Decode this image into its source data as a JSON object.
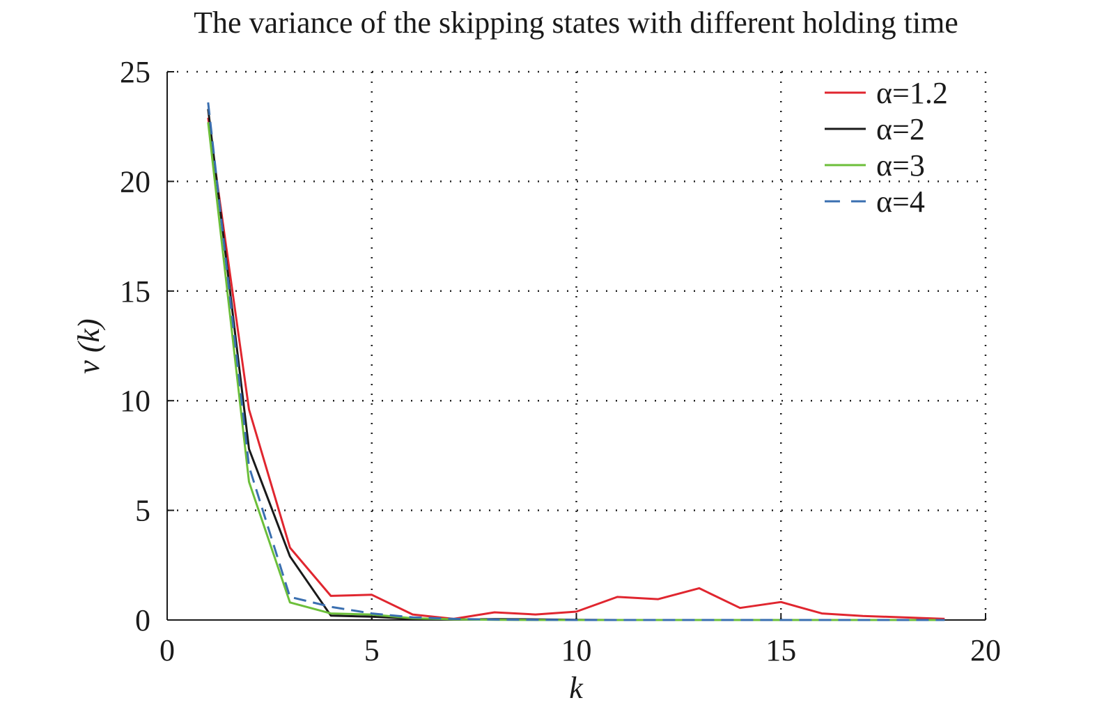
{
  "chart_data": {
    "type": "line",
    "title": "The variance of the skipping states with different holding time",
    "xlabel": "k",
    "ylabel": "v (k)",
    "xlim": [
      0,
      20
    ],
    "ylim": [
      0,
      25
    ],
    "xticks": [
      0,
      5,
      10,
      15,
      20
    ],
    "yticks": [
      0,
      5,
      10,
      15,
      20,
      25
    ],
    "grid": true,
    "legend_position": "top-right",
    "series": [
      {
        "name": "α=1.2",
        "color": "#e0262f",
        "dash": "solid",
        "x": [
          1,
          2,
          3,
          4,
          5,
          6,
          7,
          8,
          9,
          10,
          11,
          12,
          13,
          14,
          15,
          16,
          17,
          18,
          19
        ],
        "y": [
          22.9,
          9.6,
          3.3,
          1.1,
          1.15,
          0.25,
          0.05,
          0.35,
          0.25,
          0.38,
          1.05,
          0.95,
          1.45,
          0.55,
          0.82,
          0.3,
          0.18,
          0.12,
          0.05
        ]
      },
      {
        "name": "α=2",
        "color": "#1a1a1a",
        "dash": "solid",
        "x": [
          1,
          2,
          3,
          4,
          5,
          6,
          7,
          8,
          9,
          10,
          11,
          12,
          13,
          14,
          15,
          16,
          17,
          18,
          19
        ],
        "y": [
          23.3,
          7.8,
          2.9,
          0.2,
          0.15,
          0.05,
          0.02,
          0.04,
          0.03,
          0.01,
          0.0,
          0.0,
          0.0,
          0.0,
          0.0,
          0.0,
          0.0,
          0.0,
          0.0
        ]
      },
      {
        "name": "α=3",
        "color": "#6cbf3a",
        "dash": "solid",
        "x": [
          1,
          2,
          3,
          4,
          5,
          6,
          7,
          8,
          9,
          10,
          11,
          12,
          13,
          14,
          15,
          16,
          17,
          18,
          19
        ],
        "y": [
          22.7,
          6.3,
          0.8,
          0.3,
          0.25,
          0.08,
          0.03,
          0.01,
          0.0,
          0.0,
          0.0,
          0.0,
          0.0,
          0.0,
          0.0,
          0.0,
          0.0,
          0.0,
          0.0
        ]
      },
      {
        "name": "α=4",
        "color": "#3a6fb0",
        "dash": "dashed",
        "x": [
          1,
          2,
          3,
          4,
          5,
          6,
          7,
          8,
          9,
          10,
          11,
          12,
          13,
          14,
          15,
          16,
          17,
          18,
          19
        ],
        "y": [
          23.6,
          7.0,
          1.05,
          0.6,
          0.3,
          0.12,
          0.05,
          0.02,
          0.01,
          0.0,
          0.0,
          0.0,
          0.0,
          0.0,
          0.0,
          0.0,
          0.0,
          0.0,
          0.0
        ]
      }
    ]
  }
}
